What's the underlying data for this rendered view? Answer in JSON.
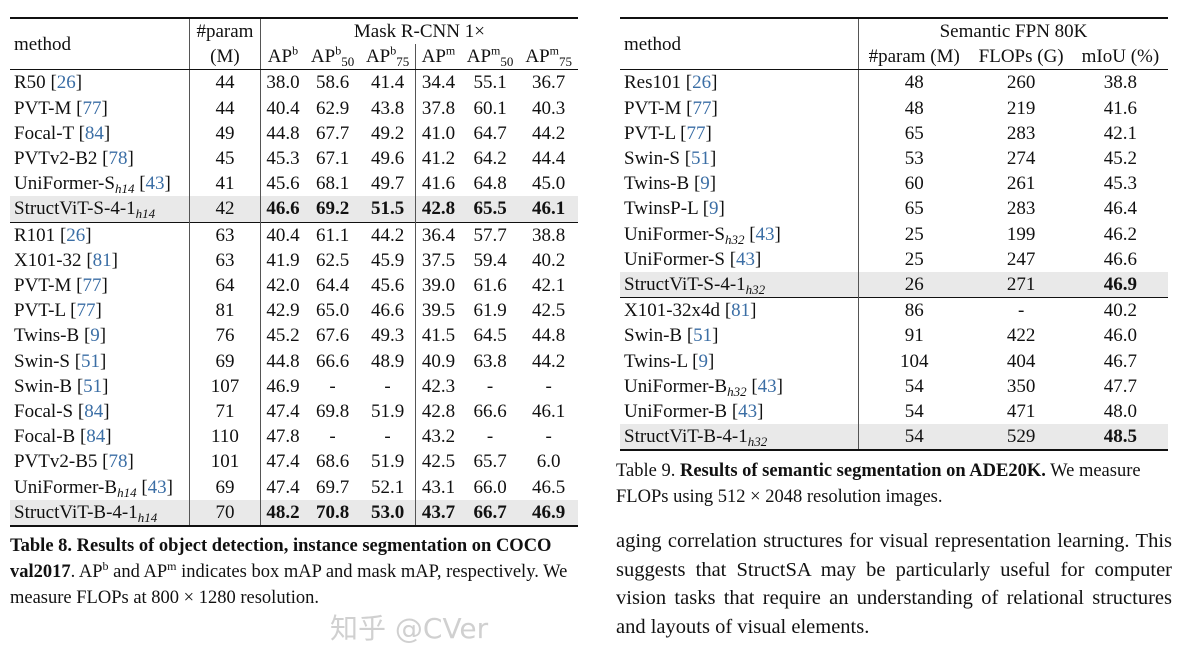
{
  "table8": {
    "header": {
      "method": "method",
      "param_top": "#param",
      "param_bottom": "(M)",
      "group": "Mask R-CNN 1×",
      "cols": [
        {
          "base": "AP",
          "sup": "b",
          "sub": ""
        },
        {
          "base": "AP",
          "sup": "b",
          "sub": "50"
        },
        {
          "base": "AP",
          "sup": "b",
          "sub": "75"
        },
        {
          "base": "AP",
          "sup": "m",
          "sub": ""
        },
        {
          "base": "AP",
          "sup": "m",
          "sub": "50"
        },
        {
          "base": "AP",
          "sup": "m",
          "sub": "75"
        }
      ]
    },
    "groups": [
      [
        {
          "name": "R50",
          "sub": "",
          "ref": "26",
          "param": "44",
          "vals": [
            "38.0",
            "58.6",
            "41.4",
            "34.4",
            "55.1",
            "36.7"
          ]
        },
        {
          "name": "PVT-M",
          "sub": "",
          "ref": "77",
          "param": "44",
          "vals": [
            "40.4",
            "62.9",
            "43.8",
            "37.8",
            "60.1",
            "40.3"
          ]
        },
        {
          "name": "Focal-T",
          "sub": "",
          "ref": "84",
          "param": "49",
          "vals": [
            "44.8",
            "67.7",
            "49.2",
            "41.0",
            "64.7",
            "44.2"
          ]
        },
        {
          "name": "PVTv2-B2",
          "sub": "",
          "ref": "78",
          "param": "45",
          "vals": [
            "45.3",
            "67.1",
            "49.6",
            "41.2",
            "64.2",
            "44.4"
          ]
        },
        {
          "name": "UniFormer-S",
          "sub": "h14",
          "ref": "43",
          "param": "41",
          "vals": [
            "45.6",
            "68.1",
            "49.7",
            "41.6",
            "64.8",
            "45.0"
          ]
        },
        {
          "name": "StructViT-S-4-1",
          "sub": "h14",
          "ref": "",
          "param": "42",
          "vals": [
            "46.6",
            "69.2",
            "51.5",
            "42.8",
            "65.5",
            "46.1"
          ],
          "highlight": true
        }
      ],
      [
        {
          "name": "R101",
          "sub": "",
          "ref": "26",
          "param": "63",
          "vals": [
            "40.4",
            "61.1",
            "44.2",
            "36.4",
            "57.7",
            "38.8"
          ]
        },
        {
          "name": "X101-32",
          "sub": "",
          "ref": "81",
          "param": "63",
          "vals": [
            "41.9",
            "62.5",
            "45.9",
            "37.5",
            "59.4",
            "40.2"
          ]
        },
        {
          "name": "PVT-M",
          "sub": "",
          "ref": "77",
          "param": "64",
          "vals": [
            "42.0",
            "64.4",
            "45.6",
            "39.0",
            "61.6",
            "42.1"
          ]
        },
        {
          "name": "PVT-L",
          "sub": "",
          "ref": "77",
          "param": "81",
          "vals": [
            "42.9",
            "65.0",
            "46.6",
            "39.5",
            "61.9",
            "42.5"
          ]
        },
        {
          "name": "Twins-B",
          "sub": "",
          "ref": "9",
          "param": "76",
          "vals": [
            "45.2",
            "67.6",
            "49.3",
            "41.5",
            "64.5",
            "44.8"
          ]
        },
        {
          "name": "Swin-S",
          "sub": "",
          "ref": "51",
          "param": "69",
          "vals": [
            "44.8",
            "66.6",
            "48.9",
            "40.9",
            "63.8",
            "44.2"
          ]
        },
        {
          "name": "Swin-B",
          "sub": "",
          "ref": "51",
          "param": "107",
          "vals": [
            "46.9",
            "-",
            "-",
            "42.3",
            "-",
            "-"
          ]
        },
        {
          "name": "Focal-S",
          "sub": "",
          "ref": "84",
          "param": "71",
          "vals": [
            "47.4",
            "69.8",
            "51.9",
            "42.8",
            "66.6",
            "46.1"
          ]
        },
        {
          "name": "Focal-B",
          "sub": "",
          "ref": "84",
          "param": "110",
          "vals": [
            "47.8",
            "-",
            "-",
            "43.2",
            "-",
            "-"
          ]
        },
        {
          "name": "PVTv2-B5",
          "sub": "",
          "ref": "78",
          "param": "101",
          "vals": [
            "47.4",
            "68.6",
            "51.9",
            "42.5",
            "65.7",
            "6.0"
          ]
        },
        {
          "name": "UniFormer-B",
          "sub": "h14",
          "ref": "43",
          "param": "69",
          "vals": [
            "47.4",
            "69.7",
            "52.1",
            "43.1",
            "66.0",
            "46.5"
          ]
        },
        {
          "name": "StructViT-B-4-1",
          "sub": "h14",
          "ref": "",
          "param": "70",
          "vals": [
            "48.2",
            "70.8",
            "53.0",
            "43.7",
            "66.7",
            "46.9"
          ],
          "highlight": true
        }
      ]
    ],
    "caption": {
      "label": "Table 8.",
      "bold": "Results of object detection, instance segmentation on COCO val2017",
      "rest1": ". AP",
      "sup1": "b",
      "rest2": " and AP",
      "sup2": "m",
      "rest3": " indicates box mAP and mask mAP, respectively. We measure FLOPs at 800 × 1280 resolution."
    }
  },
  "table9": {
    "header": {
      "method": "method",
      "group": "Semantic FPN 80K",
      "cols": [
        "#param (M)",
        "FLOPs (G)",
        "mIoU (%)"
      ]
    },
    "groups": [
      [
        {
          "name": "Res101",
          "sub": "",
          "ref": "26",
          "vals": [
            "48",
            "260",
            "38.8"
          ]
        },
        {
          "name": "PVT-M",
          "sub": "",
          "ref": "77",
          "vals": [
            "48",
            "219",
            "41.6"
          ]
        },
        {
          "name": "PVT-L",
          "sub": "",
          "ref": "77",
          "vals": [
            "65",
            "283",
            "42.1"
          ]
        },
        {
          "name": "Swin-S",
          "sub": "",
          "ref": "51",
          "vals": [
            "53",
            "274",
            "45.2"
          ]
        },
        {
          "name": "Twins-B",
          "sub": "",
          "ref": "9",
          "vals": [
            "60",
            "261",
            "45.3"
          ]
        },
        {
          "name": "TwinsP-L",
          "sub": "",
          "ref": "9",
          "vals": [
            "65",
            "283",
            "46.4"
          ]
        },
        {
          "name": "UniFormer-S",
          "sub": "h32",
          "ref": "43",
          "vals": [
            "25",
            "199",
            "46.2"
          ]
        },
        {
          "name": "UniFormer-S",
          "sub": "",
          "ref": "43",
          "vals": [
            "25",
            "247",
            "46.6"
          ]
        },
        {
          "name": "StructViT-S-4-1",
          "sub": "h32",
          "ref": "",
          "vals": [
            "26",
            "271",
            "46.9"
          ],
          "highlight": true,
          "bold_cols": [
            2
          ]
        }
      ],
      [
        {
          "name": "X101-32x4d",
          "sub": "",
          "ref": "81",
          "vals": [
            "86",
            "-",
            "40.2"
          ]
        },
        {
          "name": "Swin-B",
          "sub": "",
          "ref": "51",
          "vals": [
            "91",
            "422",
            "46.0"
          ]
        },
        {
          "name": "Twins-L",
          "sub": "",
          "ref": "9",
          "vals": [
            "104",
            "404",
            "46.7"
          ]
        },
        {
          "name": "UniFormer-B",
          "sub": "h32",
          "ref": "43",
          "vals": [
            "54",
            "350",
            "47.7"
          ]
        },
        {
          "name": "UniFormer-B",
          "sub": "",
          "ref": "43",
          "vals": [
            "54",
            "471",
            "48.0"
          ]
        },
        {
          "name": "StructViT-B-4-1",
          "sub": "h32",
          "ref": "",
          "vals": [
            "54",
            "529",
            "48.5"
          ],
          "highlight": true,
          "bold_cols": [
            2
          ]
        }
      ]
    ],
    "caption": {
      "label": "Table 9.",
      "bold": "Results of semantic segmentation on ADE20K.",
      "rest": " We measure FLOPs using 512 × 2048 resolution images."
    }
  },
  "paragraph": "aging correlation structures for visual representation learning. This suggests that StructSA may be particularly useful for computer vision tasks that require an understanding of relational structures and layouts of visual elements.",
  "watermark": "知乎 @CVer",
  "colors": {
    "citation": "#3b6ea5",
    "highlight_row": "#e9e9e9"
  }
}
